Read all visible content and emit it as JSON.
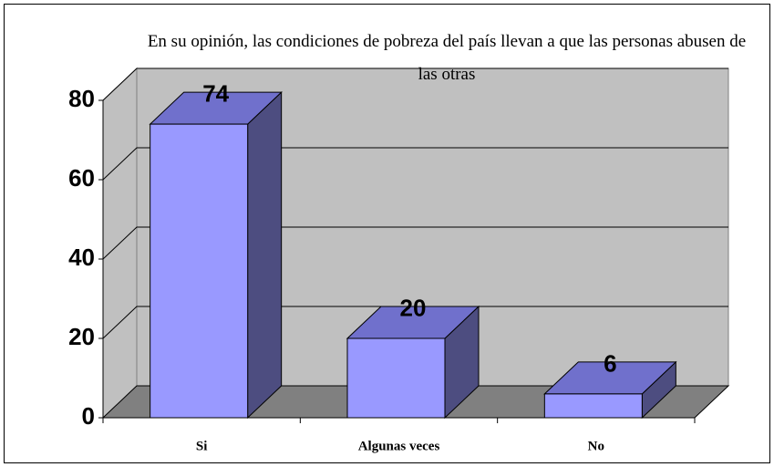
{
  "chart_data": {
    "type": "bar3d",
    "title": "En su opinión, las condiciones de pobreza del país llevan a que las personas abusen de las otras",
    "categories": [
      "Si",
      "Algunas veces",
      "No"
    ],
    "values": [
      74,
      20,
      6
    ],
    "color": "#9999ff",
    "ylim": [
      0,
      80
    ],
    "yticks": [
      0,
      20,
      40,
      60,
      80
    ],
    "grid": true
  }
}
